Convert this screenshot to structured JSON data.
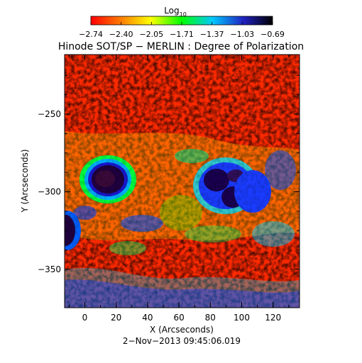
{
  "colorbar": {
    "label": "Log",
    "label_sub": "10",
    "ticks": [
      "−2.74",
      "−2.40",
      "−2.05",
      "−1.71",
      "−1.37",
      "−1.03",
      "−0.69"
    ],
    "colors": [
      "#ff0000",
      "#ff8000",
      "#ffff00",
      "#00ff00",
      "#00ffff",
      "#0000ff",
      "#000000"
    ]
  },
  "title": "Hinode SOT/SP − MERLIN : Degree of Polarization",
  "x_axis": {
    "label": "X (Arcseconds)",
    "ticks": [
      "0",
      "20",
      "40",
      "60",
      "80",
      "100",
      "120"
    ]
  },
  "y_axis": {
    "label": "Y (Arcseconds)",
    "ticks": [
      "−250",
      "−300",
      "−350"
    ]
  },
  "footer": "2−Nov−2013 09:45:06.019"
}
